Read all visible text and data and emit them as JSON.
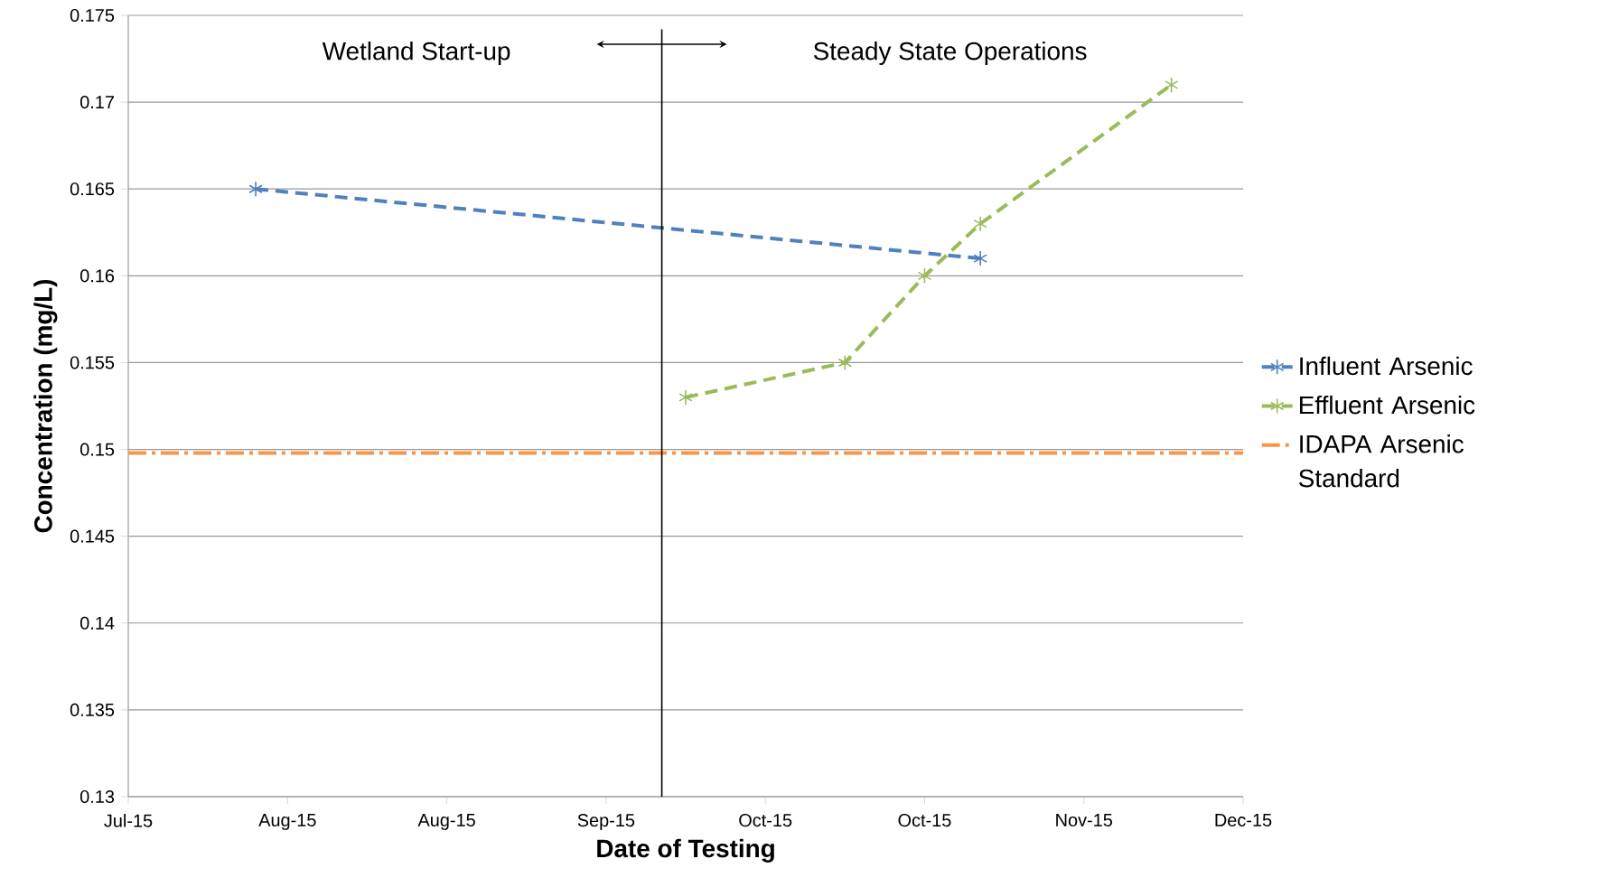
{
  "chart_data": {
    "type": "line",
    "xlabel": "Date of Testing",
    "ylabel": "Concentration (mg/L)",
    "xlim": [
      "2015-07-16",
      "2015-12-03"
    ],
    "xticks": [
      {
        "value": "2015-07-16",
        "label": "Jul-15"
      },
      {
        "value": "2015-08-05",
        "label": "Aug-15"
      },
      {
        "value": "2015-08-25",
        "label": "Aug-15"
      },
      {
        "value": "2015-09-14",
        "label": "Sep-15"
      },
      {
        "value": "2015-10-04",
        "label": "Oct-15"
      },
      {
        "value": "2015-10-24",
        "label": "Oct-15"
      },
      {
        "value": "2015-11-13",
        "label": "Nov-15"
      },
      {
        "value": "2015-12-03",
        "label": "Dec-15"
      }
    ],
    "ylim": [
      0.13,
      0.175
    ],
    "yticks": [
      0.13,
      0.135,
      0.14,
      0.145,
      0.15,
      0.155,
      0.16,
      0.165,
      0.17,
      0.175
    ],
    "grid": "y",
    "legend": "right",
    "marker": "cross",
    "line_style": "dashed",
    "series": [
      {
        "name": "Influent Arsenic",
        "color": "#4f81bd",
        "x": [
          "2015-08-01",
          "2015-10-31"
        ],
        "values": [
          0.165,
          0.161
        ]
      },
      {
        "name": "Effluent Arsenic",
        "color": "#9bbb59",
        "x": [
          "2015-09-24",
          "2015-10-14",
          "2015-10-24",
          "2015-10-31",
          "2015-11-24"
        ],
        "values": [
          0.153,
          0.155,
          0.16,
          0.163,
          0.171
        ]
      },
      {
        "name": "IDAPA Arsenic Standard",
        "color": "#f79646",
        "marker": "none",
        "line_style": "dashdot",
        "x": [
          "2015-07-16",
          "2015-12-03"
        ],
        "values": [
          0.1498,
          0.1498
        ]
      }
    ],
    "ref_lines": [
      {
        "axis": "x",
        "value": "2015-09-21",
        "color": "#000000"
      }
    ],
    "annotations": [
      "Wetland Start-up",
      "Steady State Operations"
    ]
  }
}
